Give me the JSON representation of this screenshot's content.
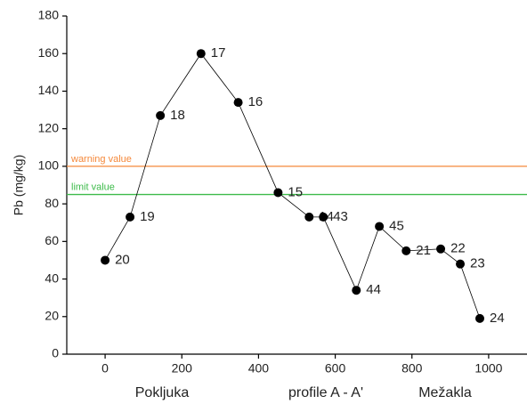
{
  "chart_data": {
    "type": "line",
    "x": [
      0,
      65,
      144,
      250,
      347,
      451,
      532,
      569,
      655,
      715,
      785,
      875,
      926,
      977
    ],
    "values": [
      50,
      73,
      127,
      160,
      134,
      86,
      73,
      73,
      34,
      68,
      55,
      56,
      48,
      19
    ],
    "point_labels": [
      "20",
      "19",
      "18",
      "17",
      "16",
      "15",
      "14",
      "43",
      "44",
      "45",
      "21",
      "22",
      "23",
      "24"
    ],
    "color": "#000000",
    "ylabel": "Pb (mg/kg)",
    "xlim": [
      -100,
      1100
    ],
    "xticks": [
      0,
      200,
      400,
      600,
      800,
      1000
    ],
    "ylim": [
      0,
      180
    ],
    "yticks": [
      0,
      20,
      40,
      60,
      80,
      100,
      120,
      140,
      160,
      180
    ],
    "reference_lines": [
      {
        "value": 100,
        "label": "warning value",
        "color": "#f5883a"
      },
      {
        "value": 85,
        "label": "limit value",
        "color": "#3dbb4a"
      }
    ],
    "annotations": [
      "Pokljuka",
      "profile A - A'",
      "Mežakla"
    ]
  }
}
